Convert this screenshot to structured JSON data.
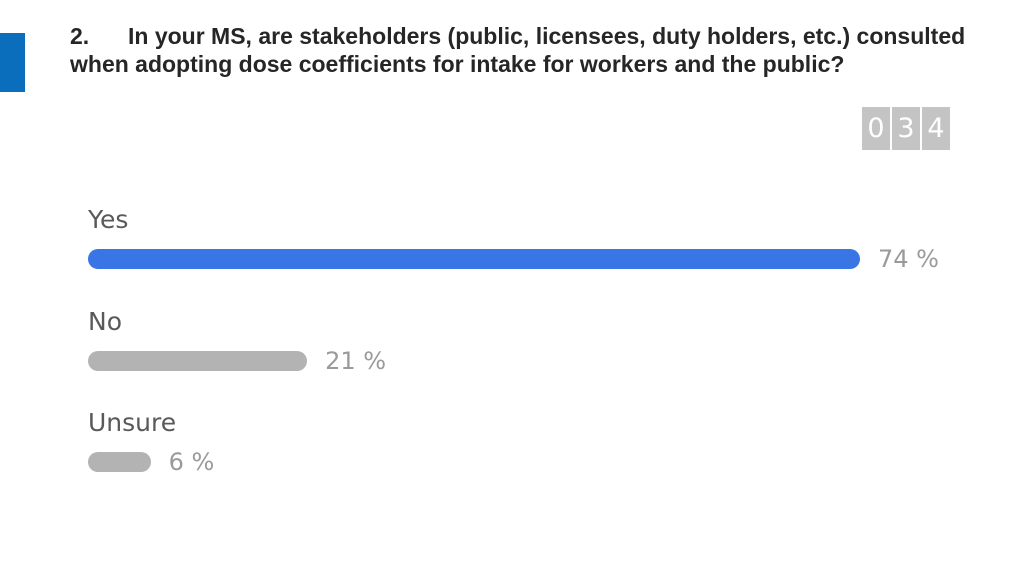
{
  "slide": {
    "accent_color": "#0a6ebd",
    "question_number": "2.",
    "question_text": "In your MS, are stakeholders (public, licensees, duty holders, etc.) consulted when adopting dose coefficients for intake for workers and the public?"
  },
  "response_counter": {
    "digits": [
      "0",
      "3",
      "4"
    ]
  },
  "chart_data": {
    "type": "bar",
    "orientation": "horizontal",
    "categories": [
      "Yes",
      "No",
      "Unsure"
    ],
    "values": [
      74,
      21,
      6
    ],
    "value_labels": [
      "74 %",
      "21 %",
      "6 %"
    ],
    "unit": "%",
    "xlim": [
      0,
      74
    ],
    "colors": [
      "#3a75e6",
      "#b3b3b3",
      "#b3b3b3"
    ],
    "grid": false,
    "legend": "none"
  }
}
